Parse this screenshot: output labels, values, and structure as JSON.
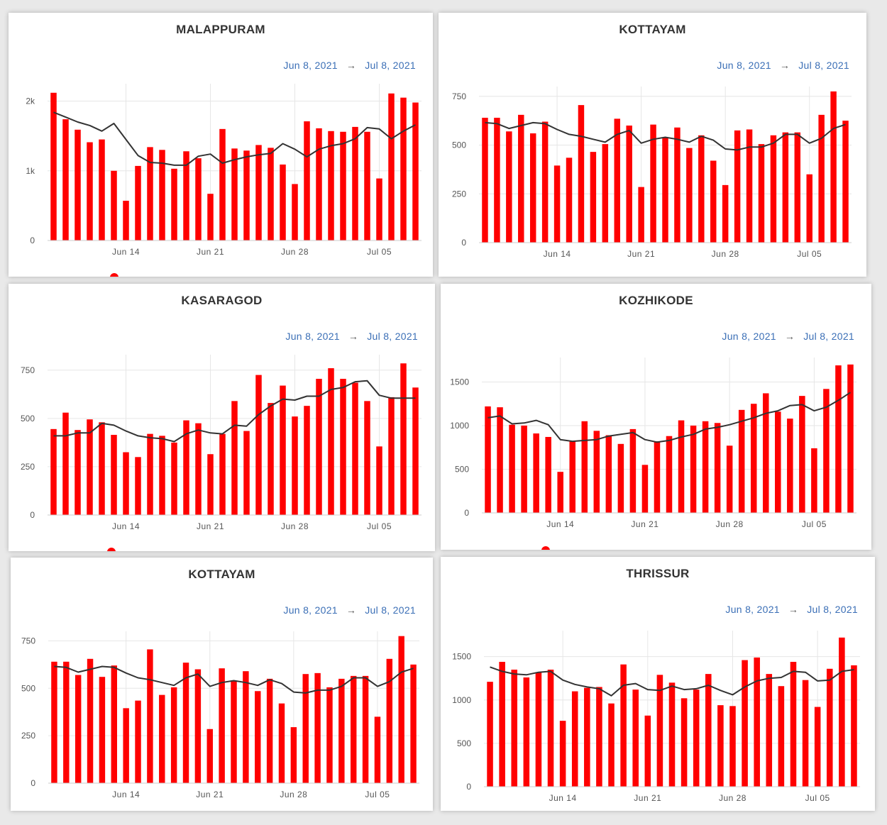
{
  "colors": {
    "bar": "#ff0000",
    "line": "#333333",
    "grid": "#e6e6e6",
    "range_text": "#3b6fb6"
  },
  "chart_data": [
    {
      "type": "bar",
      "title": "MALAPPURAM",
      "date_from": "Jun 8, 2021",
      "arrow": "→",
      "date_to": "Jul 8, 2021",
      "x_ticks": [
        "Jun 14",
        "Jun 21",
        "Jun 28",
        "Jul 05"
      ],
      "x_tick_index": [
        6,
        13,
        20,
        27
      ],
      "y_ticks": [
        0,
        1000,
        2000
      ],
      "y_tick_labels": [
        "0",
        "1k",
        "2k"
      ],
      "ylim": [
        0,
        2250
      ],
      "values": [
        2120,
        1740,
        1590,
        1410,
        1450,
        1000,
        570,
        1070,
        1340,
        1300,
        1030,
        1280,
        1180,
        670,
        1600,
        1320,
        1290,
        1370,
        1330,
        1090,
        810,
        1710,
        1610,
        1570,
        1560,
        1630,
        1560,
        890,
        2110,
        2050,
        1980
      ],
      "moving_average": [
        1840,
        1770,
        1700,
        1650,
        1570,
        1680,
        1450,
        1220,
        1120,
        1110,
        1080,
        1080,
        1210,
        1240,
        1110,
        1160,
        1200,
        1230,
        1250,
        1390,
        1310,
        1200,
        1310,
        1360,
        1390,
        1460,
        1620,
        1600,
        1460,
        1570,
        1660
      ]
    },
    {
      "type": "bar",
      "title": "KOTTAYAM",
      "date_from": "Jun 8, 2021",
      "arrow": "→",
      "date_to": "Jul 8, 2021",
      "x_ticks": [
        "Jun 14",
        "Jun 21",
        "Jun 28",
        "Jul 05"
      ],
      "x_tick_index": [
        6,
        13,
        20,
        27
      ],
      "y_ticks": [
        0,
        250,
        500,
        750
      ],
      "y_tick_labels": [
        "0",
        "250",
        "500",
        "750"
      ],
      "ylim": [
        0,
        800
      ],
      "values": [
        640,
        640,
        570,
        655,
        560,
        620,
        395,
        435,
        705,
        465,
        505,
        635,
        600,
        285,
        605,
        540,
        590,
        485,
        550,
        420,
        295,
        575,
        580,
        505,
        550,
        565,
        565,
        350,
        655,
        775,
        625
      ],
      "moving_average": [
        615,
        610,
        585,
        600,
        615,
        610,
        580,
        555,
        545,
        530,
        515,
        555,
        575,
        510,
        530,
        540,
        530,
        515,
        545,
        525,
        480,
        475,
        490,
        490,
        510,
        555,
        555,
        510,
        535,
        585,
        605
      ]
    },
    {
      "type": "bar",
      "title": "KASARAGOD",
      "date_from": "Jun 8, 2021",
      "arrow": "→",
      "date_to": "Jul 8, 2021",
      "x_ticks": [
        "Jun 14",
        "Jun 21",
        "Jun 28",
        "Jul 05"
      ],
      "x_tick_index": [
        6,
        13,
        20,
        27
      ],
      "y_ticks": [
        0,
        250,
        500,
        750
      ],
      "y_tick_labels": [
        "0",
        "250",
        "500",
        "750"
      ],
      "ylim": [
        0,
        830
      ],
      "values": [
        445,
        530,
        440,
        495,
        480,
        415,
        325,
        300,
        420,
        410,
        375,
        490,
        475,
        315,
        420,
        590,
        435,
        725,
        580,
        670,
        510,
        565,
        705,
        760,
        705,
        685,
        590,
        355,
        610,
        785,
        660
      ],
      "moving_average": [
        410,
        410,
        425,
        425,
        475,
        465,
        435,
        410,
        400,
        395,
        380,
        420,
        440,
        425,
        420,
        465,
        460,
        520,
        565,
        600,
        595,
        615,
        615,
        650,
        660,
        690,
        695,
        620,
        605,
        605,
        605
      ]
    },
    {
      "type": "bar",
      "title": "KOZHIKODE",
      "date_from": "Jun 8, 2021",
      "arrow": "→",
      "date_to": "Jul 8, 2021",
      "x_ticks": [
        "Jun 14",
        "Jun 21",
        "Jun 28",
        "Jul 05"
      ],
      "x_tick_index": [
        6,
        13,
        20,
        27
      ],
      "y_ticks": [
        0,
        500,
        1000,
        1500
      ],
      "y_tick_labels": [
        "0",
        "500",
        "1000",
        "1500"
      ],
      "ylim": [
        0,
        1780
      ],
      "values": [
        1220,
        1210,
        1010,
        1000,
        910,
        870,
        470,
        820,
        1050,
        940,
        890,
        790,
        960,
        550,
        820,
        880,
        1060,
        1000,
        1050,
        1030,
        770,
        1180,
        1250,
        1370,
        1160,
        1080,
        1340,
        740,
        1420,
        1690,
        1700
      ],
      "moving_average": [
        1090,
        1110,
        1020,
        1030,
        1060,
        1010,
        840,
        820,
        830,
        840,
        880,
        900,
        920,
        840,
        810,
        830,
        870,
        900,
        960,
        980,
        1010,
        1050,
        1090,
        1140,
        1170,
        1230,
        1240,
        1170,
        1210,
        1290,
        1380
      ]
    },
    {
      "type": "bar",
      "title": "KOTTAYAM",
      "date_from": "Jun 8, 2021",
      "arrow": "→",
      "date_to": "Jul 8, 2021",
      "x_ticks": [
        "Jun 14",
        "Jun 21",
        "Jun 28",
        "Jul 05"
      ],
      "x_tick_index": [
        6,
        13,
        20,
        27
      ],
      "y_ticks": [
        0,
        250,
        500,
        750
      ],
      "y_tick_labels": [
        "0",
        "250",
        "500",
        "750"
      ],
      "ylim": [
        0,
        800
      ],
      "values": [
        640,
        640,
        570,
        655,
        560,
        620,
        395,
        435,
        705,
        465,
        505,
        635,
        600,
        285,
        605,
        540,
        590,
        485,
        550,
        420,
        295,
        575,
        580,
        505,
        550,
        565,
        565,
        350,
        655,
        775,
        625
      ],
      "moving_average": [
        615,
        610,
        585,
        600,
        615,
        610,
        580,
        555,
        545,
        530,
        515,
        555,
        575,
        510,
        530,
        540,
        530,
        515,
        545,
        525,
        480,
        475,
        490,
        490,
        510,
        555,
        555,
        510,
        535,
        585,
        605
      ]
    },
    {
      "type": "bar",
      "title": "THRISSUR",
      "date_from": "Jun 8, 2021",
      "arrow": "→",
      "date_to": "Jul 8, 2021",
      "x_ticks": [
        "Jun 14",
        "Jun 21",
        "Jun 28",
        "Jul 05"
      ],
      "x_tick_index": [
        6,
        13,
        20,
        27
      ],
      "y_ticks": [
        0,
        500,
        1000,
        1500
      ],
      "y_tick_labels": [
        "0",
        "500",
        "1000",
        "1500"
      ],
      "ylim": [
        0,
        1800
      ],
      "values": [
        1210,
        1440,
        1350,
        1260,
        1320,
        1350,
        760,
        1100,
        1140,
        1150,
        960,
        1410,
        1120,
        820,
        1290,
        1200,
        1020,
        1120,
        1300,
        940,
        930,
        1460,
        1490,
        1300,
        1160,
        1440,
        1230,
        920,
        1360,
        1720,
        1400
      ],
      "moving_average": [
        1380,
        1330,
        1300,
        1290,
        1320,
        1330,
        1230,
        1180,
        1150,
        1130,
        1050,
        1170,
        1190,
        1120,
        1110,
        1160,
        1120,
        1130,
        1170,
        1110,
        1060,
        1150,
        1220,
        1250,
        1260,
        1330,
        1320,
        1220,
        1230,
        1330,
        1350
      ]
    }
  ]
}
